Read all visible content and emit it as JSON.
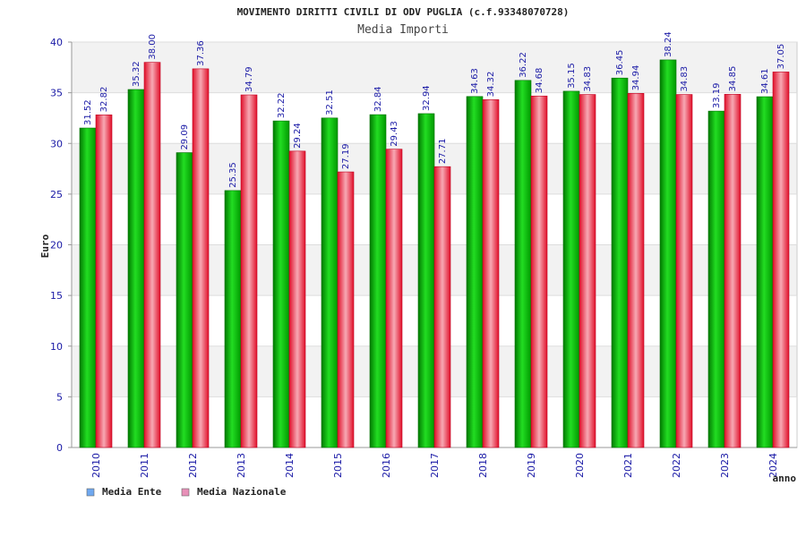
{
  "chart_data": {
    "type": "bar",
    "title": "MOVIMENTO DIRITTI CIVILI DI ODV PUGLIA (c.f.93348070728)",
    "subtitle": "Media Importi",
    "xlabel": "anno",
    "ylabel": "Euro",
    "ylim": [
      0,
      40
    ],
    "yticks": [
      0,
      5,
      10,
      15,
      20,
      25,
      30,
      35,
      40
    ],
    "grid": true,
    "legend_position": "bottom-left",
    "categories": [
      "2010",
      "2011",
      "2012",
      "2013",
      "2014",
      "2015",
      "2016",
      "2017",
      "2018",
      "2019",
      "2020",
      "2021",
      "2022",
      "2023",
      "2024"
    ],
    "series": [
      {
        "name": "Media Ente",
        "color": "#00cc00",
        "legend_color": "#6fa8f0",
        "values": [
          31.52,
          35.32,
          29.09,
          25.35,
          32.22,
          32.51,
          32.84,
          32.94,
          34.63,
          36.22,
          35.15,
          36.45,
          38.24,
          33.19,
          34.61
        ],
        "labels": [
          "31.52",
          "35.32",
          "29.09",
          "25.35",
          "32.22",
          "32.51",
          "32.84",
          "32.94",
          "34.63",
          "36.22",
          "35.15",
          "36.45",
          "38.24",
          "33.19",
          "34.61"
        ]
      },
      {
        "name": "Media Nazionale",
        "color": "#ee1133",
        "legend_color": "#e890b8",
        "values": [
          32.82,
          38.0,
          37.36,
          34.79,
          29.24,
          27.19,
          29.43,
          27.71,
          34.32,
          34.68,
          34.83,
          34.94,
          34.83,
          34.85,
          37.05
        ],
        "labels": [
          "32.82",
          "38.00",
          "37.36",
          "34.79",
          "29.24",
          "27.19",
          "29.43",
          "27.71",
          "34.32",
          "34.68",
          "34.83",
          "34.94",
          "34.83",
          "34.85",
          "37.05"
        ]
      }
    ]
  }
}
